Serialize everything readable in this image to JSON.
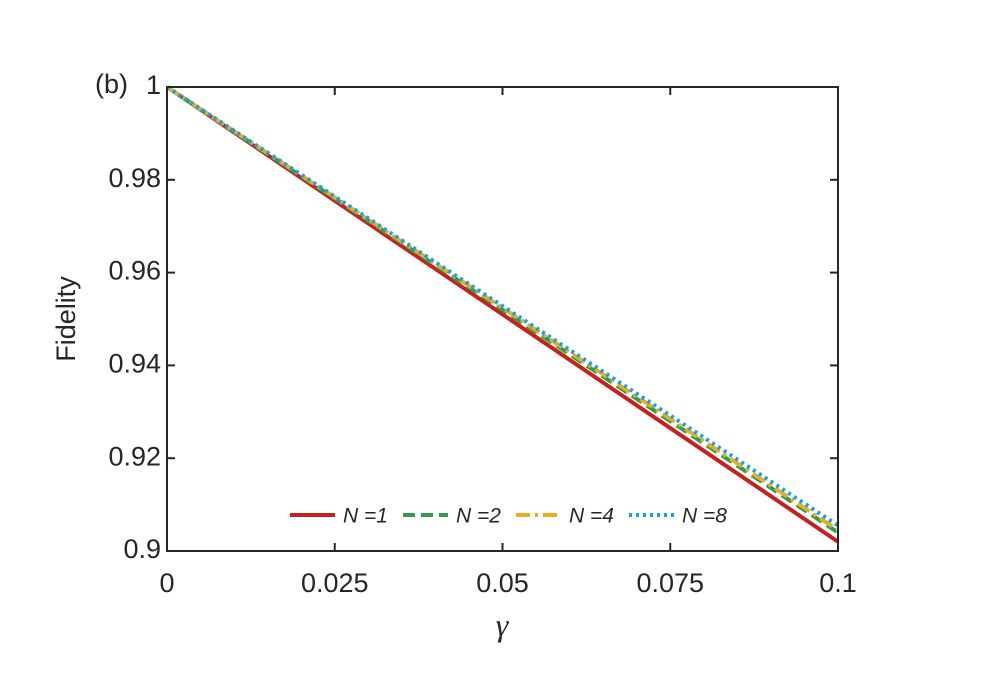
{
  "chart_data": {
    "type": "line",
    "annotation": "(b)",
    "xlabel": "γ",
    "ylabel": "Fidelity",
    "x": [
      0,
      0.025,
      0.05,
      0.075,
      0.1
    ],
    "series": [
      {
        "name": "N =1",
        "color": "#c8201e",
        "dash": "solid",
        "values": [
          1,
          0.9755,
          0.951,
          0.9265,
          0.902
        ]
      },
      {
        "name": "N =2",
        "color": "#2e9e4a",
        "dash": "dashed",
        "values": [
          1,
          0.976,
          0.952,
          0.928,
          0.904
        ]
      },
      {
        "name": "N =4",
        "color": "#e6b020",
        "dash": "dashdot",
        "values": [
          1,
          0.9762,
          0.9524,
          0.9285,
          0.9045
        ]
      },
      {
        "name": "N =8",
        "color": "#1a9ee8",
        "dash": "dotted",
        "values": [
          1,
          0.9764,
          0.9528,
          0.9292,
          0.9055
        ]
      }
    ],
    "xlim": [
      0,
      0.1
    ],
    "xticks": [
      0,
      0.025,
      0.05,
      0.075,
      0.1
    ],
    "ylim": [
      0.9,
      1
    ],
    "yticks": [
      0.9,
      0.92,
      0.94,
      0.96,
      0.98,
      1
    ],
    "grid": false,
    "legend": "bottom"
  }
}
